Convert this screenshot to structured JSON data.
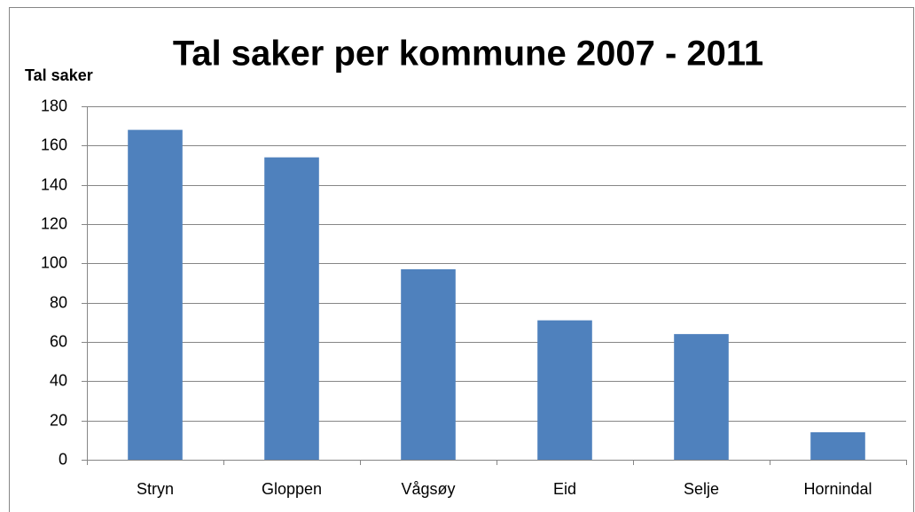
{
  "chart_data": {
    "type": "bar",
    "title": "Tal saker per kommune 2007 - 2011",
    "y_label": "Tal saker",
    "categories": [
      "Stryn",
      "Gloppen",
      "Vågsøy",
      "Eid",
      "Selje",
      "Hornindal"
    ],
    "values": [
      168,
      154,
      97,
      71,
      64,
      14
    ],
    "color": "#4f81bd",
    "ylim": [
      0,
      180
    ],
    "yticks": [
      0,
      20,
      40,
      60,
      80,
      100,
      120,
      140,
      160,
      180
    ],
    "grid": true
  }
}
